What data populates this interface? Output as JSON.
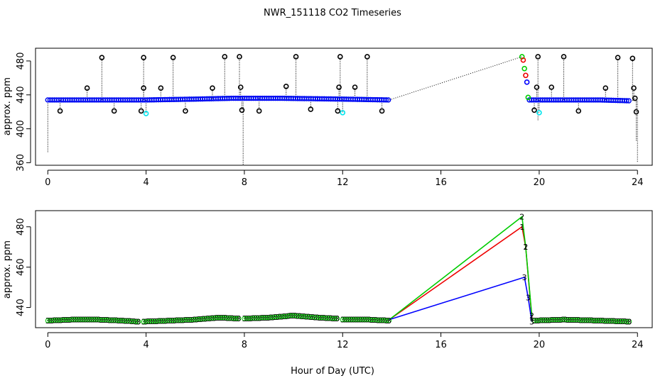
{
  "chart_data": [
    {
      "type": "scatter",
      "title": "NWR_151118  CO2 Timeseries",
      "xlabel": "",
      "ylabel": "approx. ppm",
      "xlim": [
        -0.5,
        24.6
      ],
      "ylim": [
        357,
        495
      ],
      "x_ticks": [
        0,
        4,
        8,
        12,
        16,
        20,
        24
      ],
      "y_ticks": [
        360,
        400,
        440,
        480
      ],
      "colors": {
        "black": "#000000",
        "blue": "#0000ff",
        "cyan": "#00e5ee",
        "green": "#00cc00",
        "red": "#ee0000"
      },
      "baseline": {
        "segments": [
          {
            "x": [
              0.0,
              2.0,
              4.0,
              6.0,
              7.5,
              9.5,
              12.0,
              13.9
            ],
            "y": [
              434,
              434,
              434,
              435,
              436,
              436,
              435,
              434
            ]
          },
          {
            "x": [
              19.6,
              21.0,
              22.5,
              23.7
            ],
            "y": [
              434,
              434,
              434,
              433
            ]
          }
        ]
      },
      "gap_line": {
        "x": [
          13.9,
          19.3
        ],
        "y": [
          434,
          485
        ]
      },
      "outliers": {
        "black": [
          [
            0.5,
            421
          ],
          [
            1.6,
            448
          ],
          [
            2.2,
            484
          ],
          [
            2.7,
            421
          ],
          [
            3.8,
            421
          ],
          [
            3.9,
            448
          ],
          [
            3.9,
            484
          ],
          [
            4.6,
            448
          ],
          [
            5.1,
            484
          ],
          [
            5.6,
            421
          ],
          [
            6.7,
            448
          ],
          [
            7.2,
            485
          ],
          [
            7.8,
            485
          ],
          [
            7.85,
            449
          ],
          [
            7.9,
            422
          ],
          [
            8.6,
            421
          ],
          [
            9.7,
            450
          ],
          [
            10.1,
            485
          ],
          [
            10.7,
            423
          ],
          [
            11.8,
            421
          ],
          [
            11.85,
            449
          ],
          [
            11.9,
            485
          ],
          [
            12.5,
            449
          ],
          [
            13.0,
            485
          ],
          [
            13.6,
            421
          ],
          [
            19.8,
            422
          ],
          [
            19.9,
            449
          ],
          [
            19.95,
            485
          ],
          [
            20.5,
            449
          ],
          [
            21.0,
            485
          ],
          [
            21.6,
            421
          ],
          [
            22.7,
            448
          ],
          [
            23.2,
            484
          ],
          [
            23.8,
            483
          ],
          [
            23.85,
            448
          ],
          [
            23.9,
            436
          ],
          [
            23.95,
            420
          ]
        ],
        "cyan": [
          [
            4.0,
            418
          ],
          [
            12.0,
            419
          ],
          [
            20.0,
            419
          ]
        ]
      },
      "spikes": [
        {
          "x": 0.0,
          "y": 372
        },
        {
          "x": 7.95,
          "y": 357
        },
        {
          "x": 19.95,
          "y": 410
        },
        {
          "x": 23.95,
          "y": 385
        },
        {
          "x": 24.0,
          "y": 360
        }
      ],
      "peak_points": [
        {
          "x": 19.3,
          "y": 485,
          "color": "green"
        },
        {
          "x": 19.35,
          "y": 481,
          "color": "red"
        },
        {
          "x": 19.4,
          "y": 471,
          "color": "green"
        },
        {
          "x": 19.45,
          "y": 463,
          "color": "red"
        },
        {
          "x": 19.5,
          "y": 455,
          "color": "blue"
        },
        {
          "x": 19.55,
          "y": 437,
          "color": "green"
        }
      ]
    },
    {
      "type": "line",
      "title": "",
      "xlabel": "Hour of Day (UTC)",
      "ylabel": "approx. ppm",
      "xlim": [
        -0.5,
        24.6
      ],
      "ylim": [
        430,
        488
      ],
      "x_ticks": [
        0,
        4,
        8,
        12,
        16,
        20,
        24
      ],
      "y_ticks": [
        440,
        460,
        480
      ],
      "marker_label": "3",
      "series": [
        {
          "name": "1",
          "color": "#ee0000",
          "x": [
            13.9,
            19.3,
            19.45,
            19.7
          ],
          "y": [
            434,
            480,
            470,
            435
          ]
        },
        {
          "name": "2",
          "color": "#00cc00",
          "x": [
            13.9,
            19.3,
            19.45,
            19.7
          ],
          "y": [
            434,
            485,
            470,
            436
          ]
        },
        {
          "name": "3",
          "color": "#0000ff",
          "x": [
            13.9,
            19.4,
            19.55,
            19.7
          ],
          "y": [
            434,
            455,
            445,
            433
          ]
        }
      ],
      "baseline_segments": [
        {
          "x": [
            0.0,
            1.0,
            2.0,
            3.0,
            3.7
          ],
          "y": [
            433.5,
            434,
            434,
            433.5,
            433
          ]
        },
        {
          "x": [
            3.9,
            5.0,
            6.0,
            7.0,
            7.8
          ],
          "y": [
            433,
            433.5,
            434,
            435,
            434.5
          ]
        },
        {
          "x": [
            8.0,
            9.0,
            10.0,
            11.0,
            11.8
          ],
          "y": [
            434.5,
            435,
            436,
            435,
            434.5
          ]
        },
        {
          "x": [
            12.0,
            13.0,
            13.9
          ],
          "y": [
            434,
            434,
            433.5
          ]
        },
        {
          "x": [
            19.8,
            21.0,
            22.5,
            23.7
          ],
          "y": [
            433.5,
            434,
            433.5,
            433
          ]
        }
      ]
    }
  ]
}
